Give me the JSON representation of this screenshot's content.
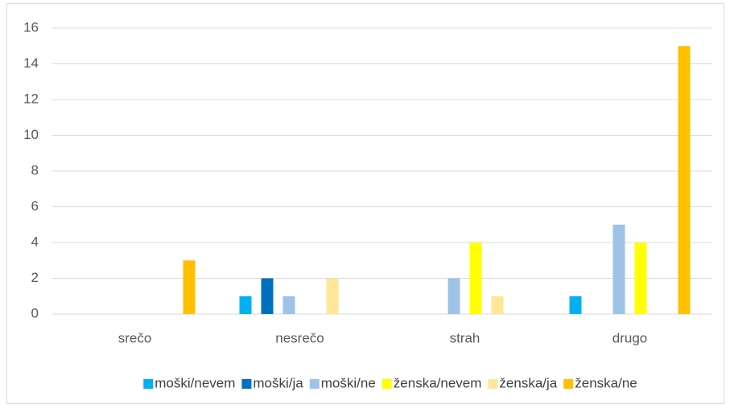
{
  "chart_data": {
    "type": "bar",
    "categories": [
      "srečo",
      "nesrečo",
      "strah",
      "drugo"
    ],
    "series": [
      {
        "name": "moški/nevem",
        "color": "#00b0f0",
        "values": [
          0,
          1,
          0,
          1
        ]
      },
      {
        "name": "moški/ja",
        "color": "#0070c0",
        "values": [
          0,
          2,
          0,
          0
        ]
      },
      {
        "name": "moški/ne",
        "color": "#9dc3e6",
        "values": [
          0,
          1,
          2,
          5
        ]
      },
      {
        "name": "ženska/nevem",
        "color": "#ffff00",
        "values": [
          0,
          0,
          4,
          4
        ]
      },
      {
        "name": "ženska/ja",
        "color": "#ffe699",
        "values": [
          0,
          2,
          1,
          0
        ]
      },
      {
        "name": "ženska/ne",
        "color": "#ffc000",
        "values": [
          3,
          0,
          0,
          15
        ]
      }
    ],
    "ylim": [
      0,
      16
    ],
    "yticks": [
      0,
      2,
      4,
      6,
      8,
      10,
      12,
      14,
      16
    ],
    "grid": true,
    "legend": "bottom"
  }
}
